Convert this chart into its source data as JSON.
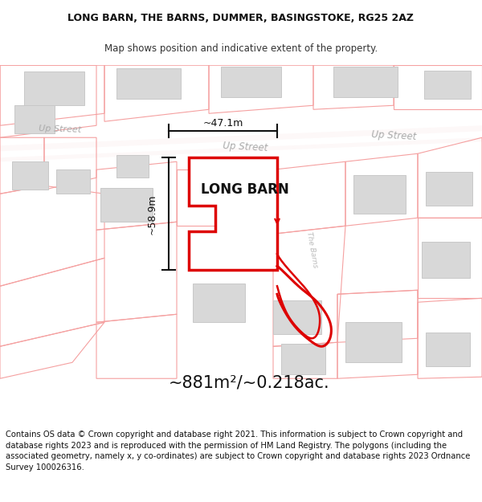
{
  "title_line1": "LONG BARN, THE BARNS, DUMMER, BASINGSTOKE, RG25 2AZ",
  "title_line2": "Map shows position and indicative extent of the property.",
  "area_text": "~881m²/~0.218ac.",
  "label_main": "LONG BARN",
  "label_street_center": "Up Street",
  "label_street_right": "Up Street",
  "label_street_left": "Up Street",
  "label_road_barns": "The Barns",
  "dim_horizontal": "~47.1m",
  "dim_vertical": "~58.9m",
  "footer_text": "Contains OS data © Crown copyright and database right 2021. This information is subject to Crown copyright and database rights 2023 and is reproduced with the permission of HM Land Registry. The polygons (including the associated geometry, namely x, y co-ordinates) are subject to Crown copyright and database rights 2023 Ordnance Survey 100026316.",
  "bg_color": "#ffffff",
  "map_bg": "#ffffff",
  "boundary_color": "#f5a0a0",
  "road_fill_color": "#faf0f0",
  "red_color": "#dd0000",
  "building_color": "#d8d8d8",
  "building_edge": "#c8c8c8",
  "title_fontsize": 9.0,
  "subtitle_fontsize": 8.5,
  "area_fontsize": 15,
  "label_fontsize": 12,
  "footer_fontsize": 7.2,
  "street_label_color": "#aaaaaa",
  "dim_color": "#111111"
}
